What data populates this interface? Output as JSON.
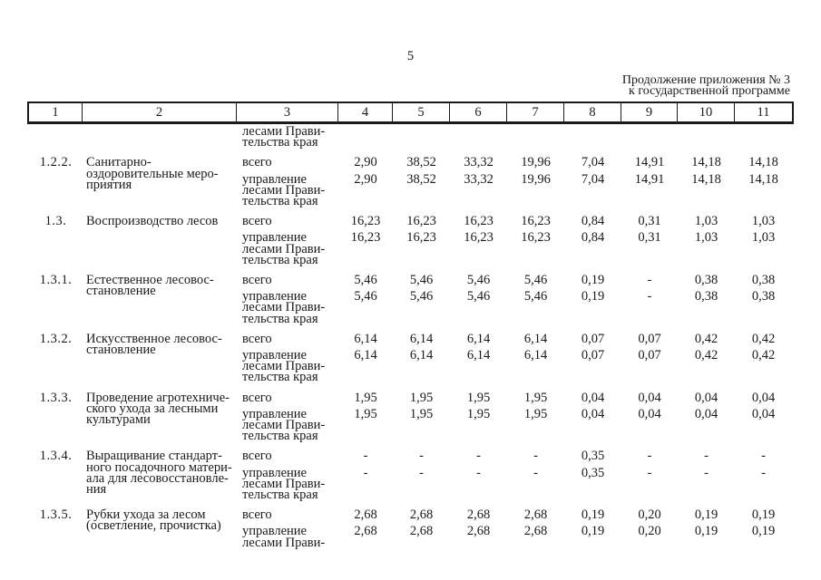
{
  "page": {
    "number": "5",
    "continuation_note": [
      "Продолжение приложения № 3",
      "к государственной программе"
    ]
  },
  "table": {
    "column_headers": [
      "1",
      "2",
      "3",
      "4",
      "5",
      "6",
      "7",
      "8",
      "9",
      "10",
      "11"
    ],
    "carryover_lines": [
      "лесами Прави-",
      "тельства края"
    ],
    "rows": [
      {
        "index": "1.2.2.",
        "name_lines": [
          "Санитарно-",
          "оздоровительные меро-",
          "приятия"
        ],
        "total_label": "всего",
        "total_values": [
          "2,90",
          "38,52",
          "33,32",
          "19,96",
          "7,04",
          "14,91",
          "14,18",
          "14,18"
        ],
        "manager_lines": [
          "управление",
          "лесами Прави-",
          "тельства края"
        ],
        "manager_values": [
          "2,90",
          "38,52",
          "33,32",
          "19,96",
          "7,04",
          "14,91",
          "14,18",
          "14,18"
        ]
      },
      {
        "index": "1.3.",
        "name_lines": [
          "Воспроизводство лесов"
        ],
        "total_label": "всего",
        "total_values": [
          "16,23",
          "16,23",
          "16,23",
          "16,23",
          "0,84",
          "0,31",
          "1,03",
          "1,03"
        ],
        "manager_lines": [
          "управление",
          "лесами Прави-",
          "тельства края"
        ],
        "manager_values": [
          "16,23",
          "16,23",
          "16,23",
          "16,23",
          "0,84",
          "0,31",
          "1,03",
          "1,03"
        ]
      },
      {
        "index": "1.3.1.",
        "name_lines": [
          "Естественное лесовос-",
          "становление"
        ],
        "total_label": "всего",
        "total_values": [
          "5,46",
          "5,46",
          "5,46",
          "5,46",
          "0,19",
          "-",
          "0,38",
          "0,38"
        ],
        "manager_lines": [
          "управление",
          "лесами Прави-",
          "тельства края"
        ],
        "manager_values": [
          "5,46",
          "5,46",
          "5,46",
          "5,46",
          "0,19",
          "-",
          "0,38",
          "0,38"
        ]
      },
      {
        "index": "1.3.2.",
        "name_lines": [
          "Искусственное лесовос-",
          "становление"
        ],
        "total_label": "всего",
        "total_values": [
          "6,14",
          "6,14",
          "6,14",
          "6,14",
          "0,07",
          "0,07",
          "0,42",
          "0,42"
        ],
        "manager_lines": [
          "управление",
          "лесами Прави-",
          "тельства края"
        ],
        "manager_values": [
          "6,14",
          "6,14",
          "6,14",
          "6,14",
          "0,07",
          "0,07",
          "0,42",
          "0,42"
        ]
      },
      {
        "index": "1.3.3.",
        "name_lines": [
          "Проведение агротехниче-",
          "ского ухода за лесными",
          "культурами"
        ],
        "total_label": "всего",
        "total_values": [
          "1,95",
          "1,95",
          "1,95",
          "1,95",
          "0,04",
          "0,04",
          "0,04",
          "0,04"
        ],
        "manager_lines": [
          "управление",
          "лесами Прави-",
          "тельства края"
        ],
        "manager_values": [
          "1,95",
          "1,95",
          "1,95",
          "1,95",
          "0,04",
          "0,04",
          "0,04",
          "0,04"
        ]
      },
      {
        "index": "1.3.4.",
        "name_lines": [
          "Выращивание стандарт-",
          "ного посадочного матери-",
          "ала для лесовосстановле-",
          "ния"
        ],
        "total_label": "всего",
        "total_values": [
          "-",
          "-",
          "-",
          "-",
          "0,35",
          "-",
          "-",
          "-"
        ],
        "manager_lines": [
          "управление",
          "лесами Прави-",
          "тельства края"
        ],
        "manager_values": [
          "-",
          "-",
          "-",
          "-",
          "0,35",
          "-",
          "-",
          "-"
        ]
      },
      {
        "index": "1.3.5.",
        "name_lines": [
          "Рубки ухода за лесом",
          "(осветление, прочистка)"
        ],
        "total_label": "всего",
        "total_values": [
          "2,68",
          "2,68",
          "2,68",
          "2,68",
          "0,19",
          "0,20",
          "0,19",
          "0,19"
        ],
        "manager_lines": [
          "управление",
          "лесами Прави-"
        ],
        "manager_values": [
          "2,68",
          "2,68",
          "2,68",
          "2,68",
          "0,19",
          "0,20",
          "0,19",
          "0,19"
        ]
      }
    ]
  }
}
